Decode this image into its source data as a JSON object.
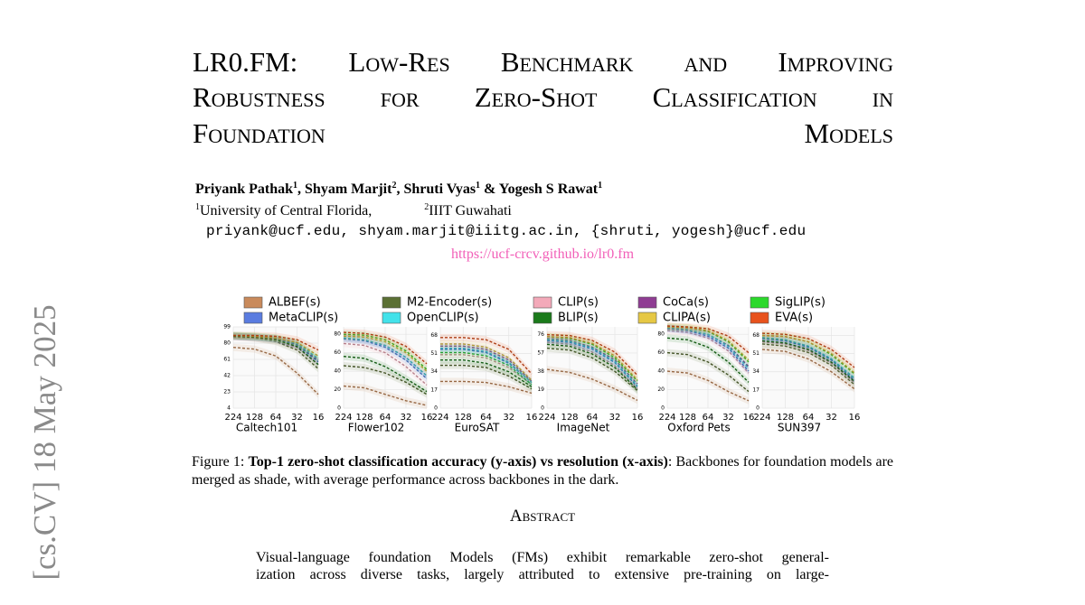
{
  "sidebar": "[cs.CV]  18 May 2025",
  "header": {
    "title_lines": [
      "LR0.FM: Low-Res Benchmark and Improving",
      "Robustness for Zero-Shot Classification in",
      "Foundation Models"
    ],
    "authors": [
      {
        "name": "Priyank Pathak",
        "sup": "1",
        "after": ", "
      },
      {
        "name": "Shyam Marjit",
        "sup": "2",
        "after": ", "
      },
      {
        "name": "Shruti Vyas",
        "sup": "1",
        "after": " & "
      },
      {
        "name": "Yogesh S Rawat",
        "sup": "1"
      }
    ],
    "affiliations": [
      {
        "sup": "1",
        "name": "University of Central Florida,"
      },
      {
        "sup": "2",
        "name": "IIIT Guwahati"
      }
    ],
    "emails": "priyank@ucf.edu, shyam.marjit@iiitg.ac.in, {shruti, yogesh}@ucf.edu",
    "url": "https://ucf-crcv.github.io/lr0.fm"
  },
  "figure": {
    "legend": [
      {
        "name": "ALBEF(s)",
        "color": "#c98a5b"
      },
      {
        "name": "M2-Encoder(s)",
        "color": "#5b7034"
      },
      {
        "name": "CLIP(s)",
        "color": "#f3a9b9"
      },
      {
        "name": "CoCa(s)",
        "color": "#8f3d93"
      },
      {
        "name": "SigLIP(s)",
        "color": "#2bd92b"
      },
      {
        "name": "MetaCLIP(s)",
        "color": "#5a7ce0"
      },
      {
        "name": "OpenCLIP(s)",
        "color": "#43e2ea"
      },
      {
        "name": "BLIP(s)",
        "color": "#1b7a1b"
      },
      {
        "name": "CLIPA(s)",
        "color": "#e6c844"
      },
      {
        "name": "EVA(s)",
        "color": "#e8521c"
      }
    ],
    "charts": [
      {
        "type": "line",
        "name": "Caltech101",
        "categories": [
          "224",
          "128",
          "64",
          "32",
          "16"
        ],
        "ylim": [
          4,
          99
        ],
        "yticks": [
          4,
          23,
          42,
          61,
          80,
          99
        ],
        "series": [
          {
            "values": [
              75,
              73,
              65,
              45,
              20
            ]
          },
          {
            "values": [
              88,
              86,
              82,
              72,
              50
            ]
          },
          {
            "values": [
              87,
              86,
              83,
              75,
              55
            ]
          },
          {
            "values": [
              88,
              87,
              85,
              78,
              60
            ]
          },
          {
            "values": [
              89,
              88,
              86,
              80,
              62
            ]
          },
          {
            "values": [
              88,
              87,
              85,
              78,
              58
            ]
          },
          {
            "values": [
              89,
              88,
              86,
              80,
              62
            ]
          },
          {
            "values": [
              88,
              87,
              84,
              76,
              55
            ]
          },
          {
            "values": [
              89,
              88,
              86,
              81,
              65
            ]
          },
          {
            "values": [
              89,
              89,
              88,
              84,
              72
            ]
          }
        ]
      },
      {
        "type": "line",
        "name": "Flower102",
        "categories": [
          "224",
          "128",
          "64",
          "32",
          "16"
        ],
        "ylim": [
          0,
          88
        ],
        "yticks": [
          0,
          20,
          40,
          60,
          80
        ],
        "series": [
          {
            "values": [
              24,
              22,
              15,
              8,
              3
            ]
          },
          {
            "values": [
              46,
              44,
              38,
              28,
              15
            ]
          },
          {
            "values": [
              70,
              68,
              60,
              45,
              25
            ]
          },
          {
            "values": [
              76,
              74,
              68,
              55,
              35
            ]
          },
          {
            "values": [
              80,
              79,
              74,
              62,
              42
            ]
          },
          {
            "values": [
              75,
              73,
              66,
              52,
              32
            ]
          },
          {
            "values": [
              76,
              74,
              68,
              55,
              35
            ]
          },
          {
            "values": [
              56,
              54,
              45,
              32,
              18
            ]
          },
          {
            "values": [
              78,
              77,
              72,
              60,
              40
            ]
          },
          {
            "values": [
              82,
              81,
              77,
              67,
              48
            ]
          }
        ]
      },
      {
        "type": "line",
        "name": "EuroSAT",
        "categories": [
          "224",
          "128",
          "64",
          "32",
          "16"
        ],
        "ylim": [
          0,
          76
        ],
        "yticks": [
          0,
          17,
          34,
          51,
          68
        ],
        "series": [
          {
            "values": [
              25,
              25,
              24,
              20,
              14
            ]
          },
          {
            "values": [
              40,
              40,
              38,
              30,
              18
            ]
          },
          {
            "values": [
              50,
              50,
              47,
              38,
              22
            ]
          },
          {
            "values": [
              58,
              58,
              55,
              45,
              25
            ]
          },
          {
            "values": [
              52,
              52,
              49,
              40,
              22
            ]
          },
          {
            "values": [
              55,
              55,
              52,
              42,
              24
            ]
          },
          {
            "values": [
              56,
              56,
              53,
              43,
              24
            ]
          },
          {
            "values": [
              45,
              45,
              42,
              34,
              20
            ]
          },
          {
            "values": [
              60,
              60,
              57,
              47,
              26
            ]
          },
          {
            "values": [
              66,
              66,
              64,
              55,
              32
            ]
          }
        ]
      },
      {
        "type": "line",
        "name": "ImageNet",
        "categories": [
          "224",
          "128",
          "64",
          "32",
          "16"
        ],
        "ylim": [
          0,
          84
        ],
        "yticks": [
          0,
          19,
          38,
          57,
          76
        ],
        "series": [
          {
            "values": [
              40,
              37,
              30,
              20,
              8
            ]
          },
          {
            "values": [
              62,
              60,
              52,
              38,
              18
            ]
          },
          {
            "values": [
              68,
              66,
              58,
              44,
              20
            ]
          },
          {
            "values": [
              72,
              70,
              63,
              50,
              25
            ]
          },
          {
            "values": [
              74,
              72,
              66,
              52,
              28
            ]
          },
          {
            "values": [
              70,
              68,
              61,
              47,
              22
            ]
          },
          {
            "values": [
              71,
              69,
              62,
              48,
              23
            ]
          },
          {
            "values": [
              66,
              64,
              56,
              42,
              19
            ]
          },
          {
            "values": [
              74,
              73,
              67,
              54,
              29
            ]
          },
          {
            "values": [
              76,
              75,
              70,
              58,
              34
            ]
          }
        ]
      },
      {
        "type": "line",
        "name": "Oxford Pets",
        "categories": [
          "224",
          "128",
          "64",
          "32",
          "16"
        ],
        "ylim": [
          0,
          88
        ],
        "yticks": [
          0,
          20,
          40,
          60,
          80
        ],
        "series": [
          {
            "values": [
              40,
              38,
              30,
              18,
              8
            ]
          },
          {
            "values": [
              60,
              58,
              50,
              36,
              18
            ]
          },
          {
            "values": [
              84,
              82,
              76,
              62,
              38
            ]
          },
          {
            "values": [
              87,
              85,
              80,
              68,
              45
            ]
          },
          {
            "values": [
              88,
              87,
              83,
              72,
              50
            ]
          },
          {
            "values": [
              86,
              84,
              78,
              65,
              40
            ]
          },
          {
            "values": [
              87,
              85,
              80,
              67,
              43
            ]
          },
          {
            "values": [
              76,
              74,
              66,
              50,
              28
            ]
          },
          {
            "values": [
              88,
              87,
              84,
              73,
              52
            ]
          },
          {
            "values": [
              89,
              88,
              86,
              78,
              60
            ]
          }
        ]
      },
      {
        "type": "line",
        "name": "SUN397",
        "categories": [
          "224",
          "128",
          "64",
          "32",
          "16"
        ],
        "ylim": [
          0,
          76
        ],
        "yticks": [
          0,
          17,
          34,
          51,
          68
        ],
        "series": [
          {
            "values": [
              55,
              53,
              46,
              34,
              18
            ]
          },
          {
            "values": [
              60,
              58,
              52,
              40,
              22
            ]
          },
          {
            "values": [
              62,
              60,
              54,
              42,
              24
            ]
          },
          {
            "values": [
              66,
              64,
              58,
              46,
              28
            ]
          },
          {
            "values": [
              68,
              67,
              62,
              50,
              32
            ]
          },
          {
            "values": [
              65,
              63,
              57,
              45,
              26
            ]
          },
          {
            "values": [
              66,
              64,
              58,
              46,
              28
            ]
          },
          {
            "values": [
              63,
              61,
              55,
              43,
              25
            ]
          },
          {
            "values": [
              68,
              67,
              62,
              51,
              33
            ]
          },
          {
            "values": [
              70,
              69,
              65,
              55,
              38
            ]
          }
        ]
      }
    ],
    "caption": {
      "label": "Figure 1: ",
      "bold": "Top-1 zero-shot classification accuracy (y-axis) vs resolution (x-axis)",
      "rest": ": Backbones for foundation models are merged as shade, with average performance across backbones in the dark."
    }
  },
  "abstract": {
    "heading": "Abstract",
    "lines": [
      "Visual-language foundation Models (FMs) exhibit remarkable zero-shot general-",
      "ization across diverse tasks, largely attributed to extensive pre-training on large-"
    ]
  }
}
